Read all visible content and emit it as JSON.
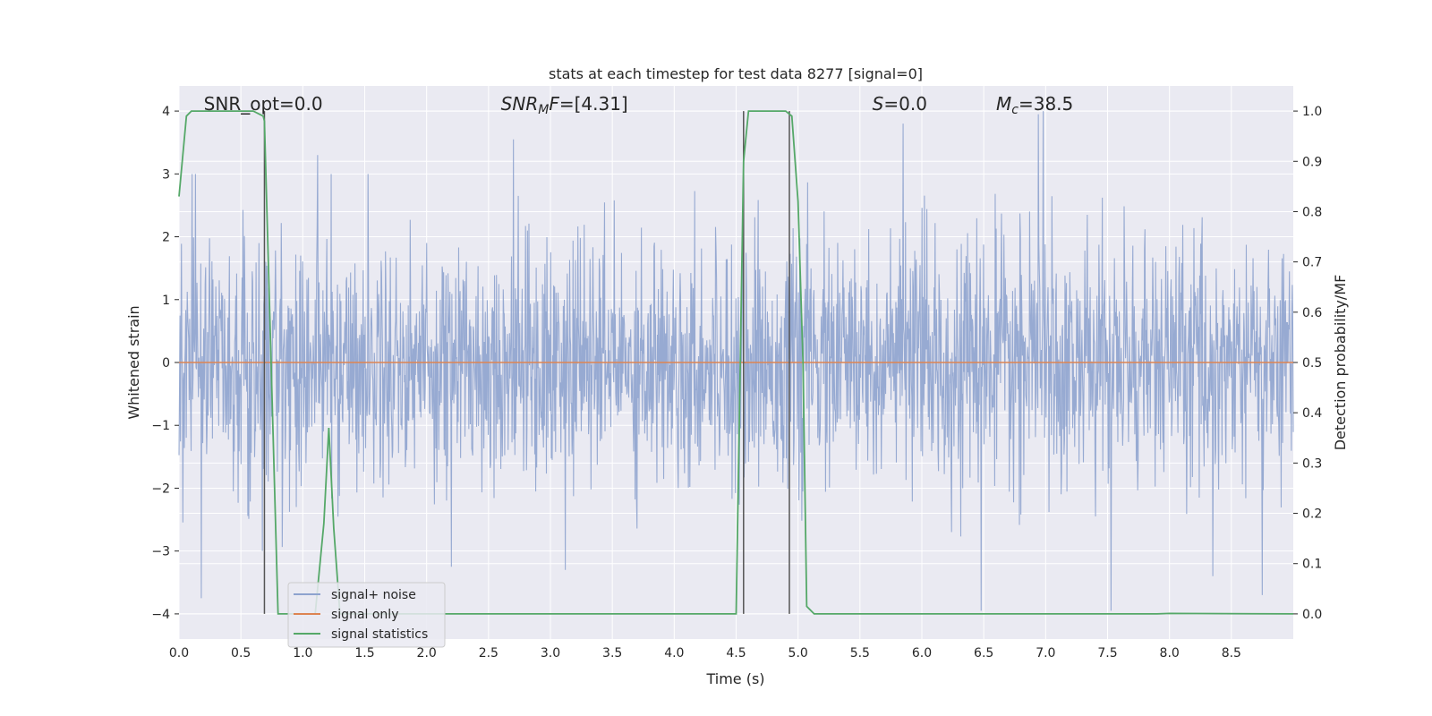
{
  "chart_data": {
    "type": "line",
    "title": "stats at each timestep for test data 8277 [signal=0]",
    "xlabel": "Time (s)",
    "ylabel": "Whitened strain",
    "y2label": "Detection probability/MF",
    "xlim": [
      0,
      9.0
    ],
    "ylim": [
      -4.4,
      4.4
    ],
    "y2lim": [
      -0.05,
      1.05
    ],
    "xticks": [
      0.0,
      0.5,
      1.0,
      1.5,
      2.0,
      2.5,
      3.0,
      3.5,
      4.0,
      4.5,
      5.0,
      5.5,
      6.0,
      6.5,
      7.0,
      7.5,
      8.0,
      8.5
    ],
    "xtick_labels": [
      "0.0",
      "0.5",
      "1.0",
      "1.5",
      "2.0",
      "2.5",
      "3.0",
      "3.5",
      "4.0",
      "4.5",
      "5.0",
      "5.5",
      "6.0",
      "6.5",
      "7.0",
      "7.5",
      "8.0",
      "8.5"
    ],
    "yticks": [
      -4,
      -3,
      -2,
      -1,
      0,
      1,
      2,
      3,
      4
    ],
    "ytick_labels": [
      "−4",
      "−3",
      "−2",
      "−1",
      "0",
      "1",
      "2",
      "3",
      "4"
    ],
    "y2ticks": [
      0.0,
      0.1,
      0.2,
      0.3,
      0.4,
      0.5,
      0.6,
      0.7,
      0.8,
      0.9,
      1.0
    ],
    "y2tick_labels": [
      "0.0",
      "0.1",
      "0.2",
      "0.3",
      "0.4",
      "0.5",
      "0.6",
      "0.7",
      "0.8",
      "0.9",
      "1.0"
    ],
    "grid": true,
    "legend_position": "bottom-left",
    "series": [
      {
        "name": "signal+ noise",
        "axis": "left",
        "color": "#8ea3ce",
        "noise": {
          "samples": 2300,
          "typical_range": [
            -2.0,
            2.0
          ],
          "max": 4.0,
          "min": -3.95,
          "notable_spikes": [
            {
              "x": 0.18,
              "y": -3.75
            },
            {
              "x": 1.12,
              "y": 3.3
            },
            {
              "x": 2.7,
              "y": 3.55
            },
            {
              "x": 3.12,
              "y": -3.3
            },
            {
              "x": 5.85,
              "y": 3.8
            },
            {
              "x": 6.48,
              "y": -3.95
            },
            {
              "x": 6.98,
              "y": 4.0
            },
            {
              "x": 7.53,
              "y": -3.95
            },
            {
              "x": 8.35,
              "y": -3.4
            },
            {
              "x": 8.75,
              "y": -3.7
            },
            {
              "x": 6.94,
              "y": 3.95
            },
            {
              "x": 2.2,
              "y": -3.25
            }
          ]
        }
      },
      {
        "name": "signal only",
        "axis": "left",
        "color": "#dd8452",
        "x": [
          0.0,
          9.0
        ],
        "y": [
          0.0,
          0.0
        ]
      },
      {
        "name": "signal statistics",
        "axis": "right",
        "color": "#55a868",
        "x": [
          0.0,
          0.06,
          0.1,
          0.2,
          0.6,
          0.68,
          0.69,
          0.8,
          1.1,
          1.17,
          1.21,
          1.25,
          1.3,
          4.5,
          4.56,
          4.6,
          4.65,
          4.9,
          4.95,
          5.0,
          5.04,
          5.07,
          5.13,
          7.9,
          8.0,
          9.0
        ],
        "y": [
          0.83,
          0.99,
          1.0,
          1.0,
          1.0,
          0.99,
          0.98,
          0.0,
          0.0,
          0.18,
          0.37,
          0.17,
          0.0,
          0.0,
          0.9,
          1.0,
          1.0,
          1.0,
          0.99,
          0.82,
          0.5,
          0.015,
          0.0,
          0.0,
          0.001,
          0.0
        ]
      }
    ],
    "vlines": [
      0.69,
      4.56,
      4.93
    ],
    "vline_color": "#555555",
    "annotations": [
      {
        "text": "SNR_opt=0.0",
        "x": 0.2
      },
      {
        "text": "SNR_MF=[4.31]",
        "x": 2.6
      },
      {
        "text": "S=0.0",
        "x": 5.6
      },
      {
        "text": "M_c=38.5",
        "x": 6.6
      }
    ],
    "background_color": "#eaeaf2",
    "grid_color": "#ffffff"
  }
}
